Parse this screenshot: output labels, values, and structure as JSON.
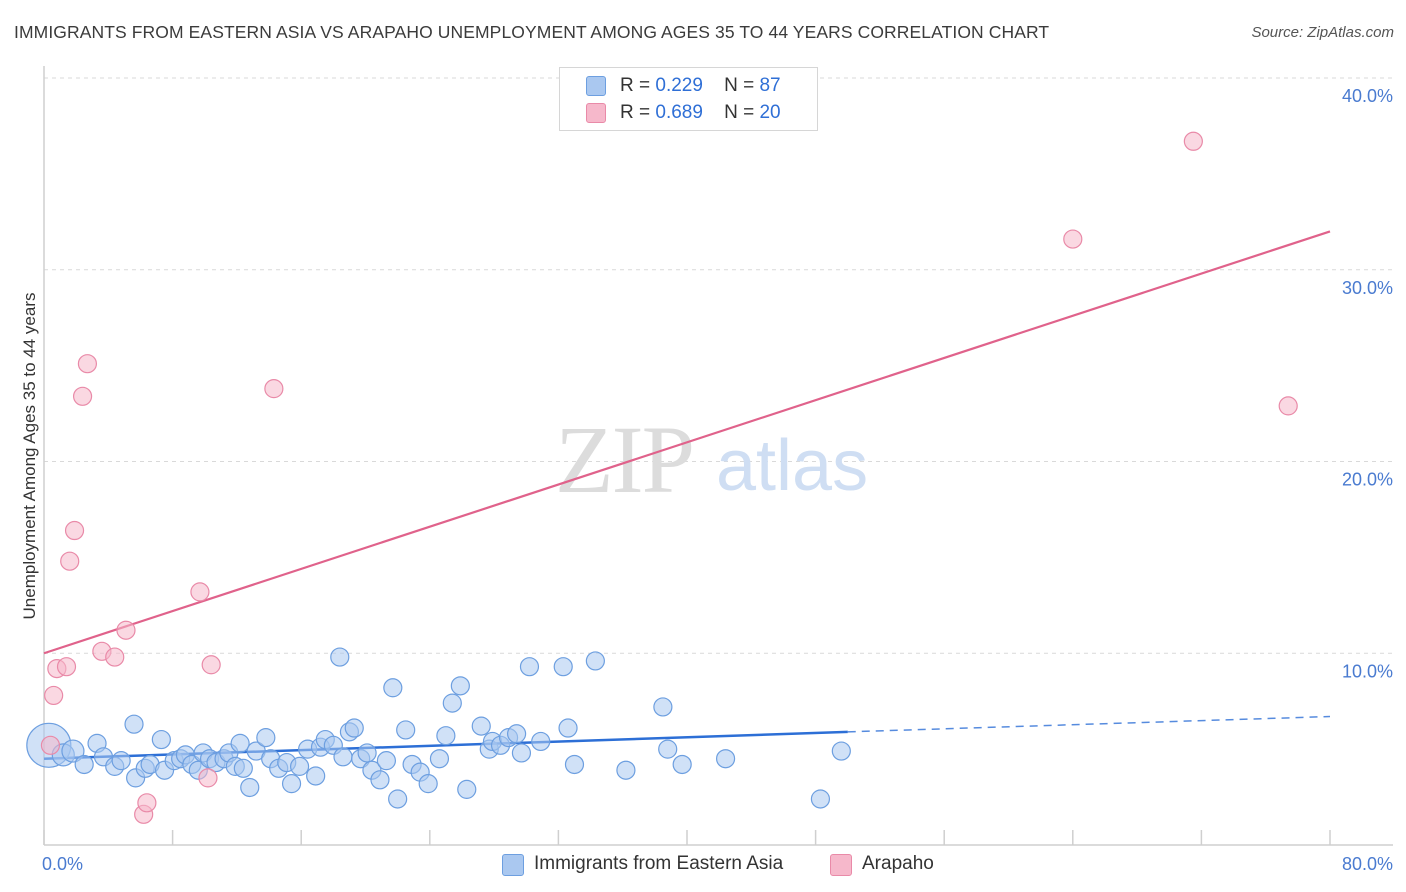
{
  "header": {
    "title": "IMMIGRANTS FROM EASTERN ASIA VS ARAPAHO UNEMPLOYMENT AMONG AGES 35 TO 44 YEARS CORRELATION CHART",
    "source": "Source: ZipAtlas.com"
  },
  "watermark": {
    "zip": "ZIP",
    "atlas": "atlas"
  },
  "legend": {
    "r_label": "R =",
    "n_label": "N =",
    "series": [
      {
        "r": "0.229",
        "n": "87"
      },
      {
        "r": "0.689",
        "n": "20"
      }
    ]
  },
  "colors": {
    "blue_fill": "#aac8f0",
    "blue_stroke": "#6d9fe0",
    "blue_line": "#2d6fd6",
    "pink_fill": "#f6b8cb",
    "pink_stroke": "#e98aa8",
    "pink_line": "#e0628b",
    "tick_text": "#4a7bd0",
    "grid": "#d9d9d9"
  },
  "chart_data": {
    "type": "scatter",
    "title": "IMMIGRANTS FROM EASTERN ASIA VS ARAPAHO UNEMPLOYMENT AMONG AGES 35 TO 44 YEARS CORRELATION CHART",
    "xlabel": "",
    "ylabel": "Unemployment Among Ages 35 to 44 years",
    "xlim": [
      0,
      80
    ],
    "ylim": [
      0,
      40
    ],
    "x_tick_labels": [
      "0.0%",
      "80.0%"
    ],
    "y_ticks": [
      {
        "value": 10,
        "label": "10.0%"
      },
      {
        "value": 20,
        "label": "20.0%"
      },
      {
        "value": 30,
        "label": "30.0%"
      },
      {
        "value": 40,
        "label": "40.0%"
      }
    ],
    "series": [
      {
        "name": "Immigrants from Eastern Asia",
        "r": 0.229,
        "n": 87,
        "trend": {
          "x0": 0,
          "y0": 4.5,
          "x1": 50,
          "y1": 5.9,
          "dashed_to_x": 80,
          "dashed_to_y": 6.7
        },
        "points": [
          [
            0.3,
            5.2,
            22
          ],
          [
            1.2,
            4.7,
            11
          ],
          [
            1.8,
            4.9,
            11
          ],
          [
            2.5,
            4.2,
            9
          ],
          [
            3.3,
            5.3,
            9
          ],
          [
            3.7,
            4.6,
            9
          ],
          [
            4.4,
            4.1,
            9
          ],
          [
            4.8,
            4.4,
            9
          ],
          [
            5.7,
            3.5,
            9
          ],
          [
            5.6,
            6.3,
            9
          ],
          [
            6.3,
            4.0,
            9
          ],
          [
            6.6,
            4.2,
            9
          ],
          [
            7.3,
            5.5,
            9
          ],
          [
            7.5,
            3.9,
            9
          ],
          [
            8.1,
            4.4,
            9
          ],
          [
            8.5,
            4.5,
            9
          ],
          [
            8.8,
            4.7,
            9
          ],
          [
            9.2,
            4.2,
            9
          ],
          [
            9.6,
            3.9,
            9
          ],
          [
            9.9,
            4.8,
            9
          ],
          [
            10.3,
            4.5,
            9
          ],
          [
            10.7,
            4.3,
            9
          ],
          [
            11.2,
            4.5,
            9
          ],
          [
            11.5,
            4.8,
            9
          ],
          [
            11.9,
            4.1,
            9
          ],
          [
            12.2,
            5.3,
            9
          ],
          [
            12.4,
            4.0,
            9
          ],
          [
            12.8,
            3.0,
            9
          ],
          [
            13.2,
            4.9,
            9
          ],
          [
            13.8,
            5.6,
            9
          ],
          [
            14.1,
            4.5,
            9
          ],
          [
            14.6,
            4.0,
            9
          ],
          [
            15.1,
            4.3,
            9
          ],
          [
            15.4,
            3.2,
            9
          ],
          [
            15.9,
            4.1,
            9
          ],
          [
            16.4,
            5.0,
            9
          ],
          [
            16.9,
            3.6,
            9
          ],
          [
            17.2,
            5.1,
            9
          ],
          [
            17.5,
            5.5,
            9
          ],
          [
            18.0,
            5.2,
            9
          ],
          [
            18.4,
            9.8,
            9
          ],
          [
            18.6,
            4.6,
            9
          ],
          [
            19.0,
            5.9,
            9
          ],
          [
            19.3,
            6.1,
            9
          ],
          [
            19.7,
            4.5,
            9
          ],
          [
            20.1,
            4.8,
            9
          ],
          [
            20.4,
            3.9,
            9
          ],
          [
            20.9,
            3.4,
            9
          ],
          [
            21.3,
            4.4,
            9
          ],
          [
            21.7,
            8.2,
            9
          ],
          [
            22.0,
            2.4,
            9
          ],
          [
            22.5,
            6.0,
            9
          ],
          [
            22.9,
            4.2,
            9
          ],
          [
            23.4,
            3.8,
            9
          ],
          [
            23.9,
            3.2,
            9
          ],
          [
            24.6,
            4.5,
            9
          ],
          [
            25.0,
            5.7,
            9
          ],
          [
            25.4,
            7.4,
            9
          ],
          [
            25.9,
            8.3,
            9
          ],
          [
            26.3,
            2.9,
            9
          ],
          [
            27.2,
            6.2,
            9
          ],
          [
            27.7,
            5.0,
            9
          ],
          [
            27.9,
            5.4,
            9
          ],
          [
            28.4,
            5.2,
            9
          ],
          [
            28.9,
            5.6,
            9
          ],
          [
            29.4,
            5.8,
            9
          ],
          [
            29.7,
            4.8,
            9
          ],
          [
            30.2,
            9.3,
            9
          ],
          [
            30.9,
            5.4,
            9
          ],
          [
            32.3,
            9.3,
            9
          ],
          [
            32.6,
            6.1,
            9
          ],
          [
            33.0,
            4.2,
            9
          ],
          [
            34.3,
            9.6,
            9
          ],
          [
            36.2,
            3.9,
            9
          ],
          [
            38.5,
            7.2,
            9
          ],
          [
            38.8,
            5.0,
            9
          ],
          [
            39.7,
            4.2,
            9
          ],
          [
            42.4,
            4.5,
            9
          ],
          [
            48.3,
            2.4,
            9
          ],
          [
            49.6,
            4.9,
            9
          ]
        ]
      },
      {
        "name": "Arapaho",
        "r": 0.689,
        "n": 20,
        "trend": {
          "x0": 0,
          "y0": 10.0,
          "x1": 80,
          "y1": 32.0
        },
        "points": [
          [
            0.4,
            5.2,
            9
          ],
          [
            0.6,
            7.8,
            9
          ],
          [
            0.8,
            9.2,
            9
          ],
          [
            1.4,
            9.3,
            9
          ],
          [
            1.6,
            14.8,
            9
          ],
          [
            1.9,
            16.4,
            9
          ],
          [
            2.4,
            23.4,
            9
          ],
          [
            2.7,
            25.1,
            9
          ],
          [
            3.6,
            10.1,
            9
          ],
          [
            4.4,
            9.8,
            9
          ],
          [
            5.1,
            11.2,
            9
          ],
          [
            6.2,
            1.6,
            9
          ],
          [
            6.4,
            2.2,
            9
          ],
          [
            9.7,
            13.2,
            9
          ],
          [
            10.2,
            3.5,
            9
          ],
          [
            10.4,
            9.4,
            9
          ],
          [
            14.3,
            23.8,
            9
          ],
          [
            64.0,
            31.6,
            9
          ],
          [
            71.5,
            36.7,
            9
          ],
          [
            77.4,
            22.9,
            9
          ]
        ]
      }
    ]
  },
  "bottom_legend": {
    "items": [
      {
        "label": "Immigrants from Eastern Asia"
      },
      {
        "label": "Arapaho"
      }
    ]
  }
}
